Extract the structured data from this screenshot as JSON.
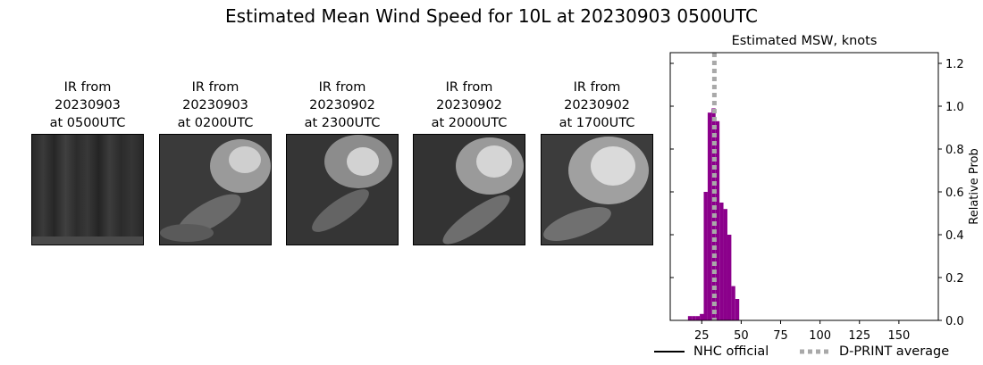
{
  "suptitle": "Estimated Mean Wind Speed for 10L at 20230903 0500UTC",
  "ir_panels": [
    {
      "title": "IR from\n20230903\nat 0500UTC",
      "style": "striped"
    },
    {
      "title": "IR from\n20230903\nat 0200UTC",
      "style": "cloud"
    },
    {
      "title": "IR from\n20230902\nat 2300UTC",
      "style": "cloud"
    },
    {
      "title": "IR from\n20230902\nat 2000UTC",
      "style": "cloud"
    },
    {
      "title": "IR from\n20230902\nat 1700UTC",
      "style": "cloud"
    }
  ],
  "chart_data": {
    "type": "bar",
    "title": "Estimated MSW, knots",
    "xlabel": "",
    "ylabel": "Relative Prob",
    "xlim": [
      5,
      175
    ],
    "ylim": [
      0,
      1.25
    ],
    "xticks": [
      25,
      50,
      75,
      100,
      125,
      150
    ],
    "yticks": [
      0.0,
      0.2,
      0.4,
      0.6,
      0.8,
      1.0,
      1.2
    ],
    "bar_width": 2.5,
    "bar_color": "#8b008b",
    "x": [
      17.5,
      20,
      22.5,
      25,
      27.5,
      30,
      32.5,
      35,
      37.5,
      40,
      42.5,
      45,
      47.5
    ],
    "values": [
      0.02,
      0.02,
      0.02,
      0.03,
      0.6,
      0.97,
      0.99,
      0.93,
      0.55,
      0.52,
      0.4,
      0.16,
      0.1
    ],
    "dprint_average": 33,
    "dprint_color": "#a9a9a9",
    "legend": [
      {
        "label": "NHC official",
        "style": "solid",
        "color": "#000000"
      },
      {
        "label": "D-PRINT average",
        "style": "dotted",
        "color": "#a9a9a9"
      }
    ]
  }
}
